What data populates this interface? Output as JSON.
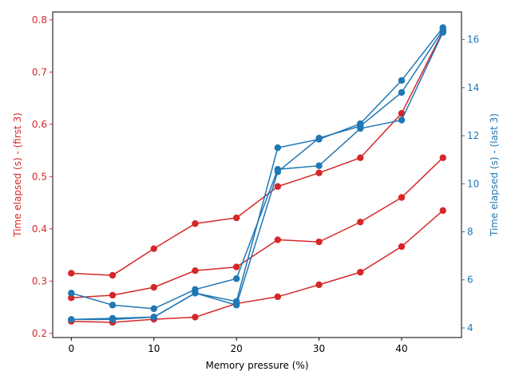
{
  "chart_data": {
    "type": "line",
    "xlabel": "Memory pressure (%)",
    "ylabel_left": "Time elapsed (s) - (first 3)",
    "ylabel_right": "Time elapsed (s) - (last 3)",
    "x": [
      0,
      5,
      10,
      15,
      20,
      25,
      30,
      35,
      40,
      45
    ],
    "xlim": [
      -2.25,
      47.25
    ],
    "xticks": [
      "0",
      "10",
      "20",
      "30",
      "40"
    ],
    "ylim_left": [
      0.192,
      0.815
    ],
    "yticks_left": [
      "0.2",
      "0.3",
      "0.4",
      "0.5",
      "0.6",
      "0.7",
      "0.8"
    ],
    "ylim_right": [
      3.6,
      17.15
    ],
    "yticks_right": [
      "4",
      "6",
      "8",
      "10",
      "12",
      "14",
      "16"
    ],
    "grid": false,
    "left_color": "#d62728",
    "right_color": "#1f77b4",
    "series_left": [
      {
        "values": [
          0.315,
          0.311,
          0.362,
          0.41,
          0.421,
          0.481,
          0.507,
          0.536,
          0.621,
          0.778
        ]
      },
      {
        "values": [
          0.268,
          0.273,
          0.288,
          0.32,
          0.327,
          0.379,
          0.375,
          0.413,
          0.46,
          0.536
        ]
      },
      {
        "values": [
          0.223,
          0.221,
          0.227,
          0.231,
          0.257,
          0.27,
          0.293,
          0.317,
          0.366,
          0.435
        ]
      }
    ],
    "series_right": [
      {
        "values": [
          4.35,
          4.4,
          4.45,
          5.45,
          5.1,
          11.5,
          11.85,
          12.5,
          14.3,
          16.5
        ]
      },
      {
        "values": [
          5.45,
          4.95,
          4.8,
          5.6,
          6.05,
          10.6,
          10.75,
          12.3,
          12.65,
          16.3
        ]
      },
      {
        "values": [
          4.35,
          4.35,
          4.45,
          5.45,
          4.95,
          10.5,
          11.9,
          12.4,
          13.8,
          16.4
        ]
      }
    ]
  }
}
